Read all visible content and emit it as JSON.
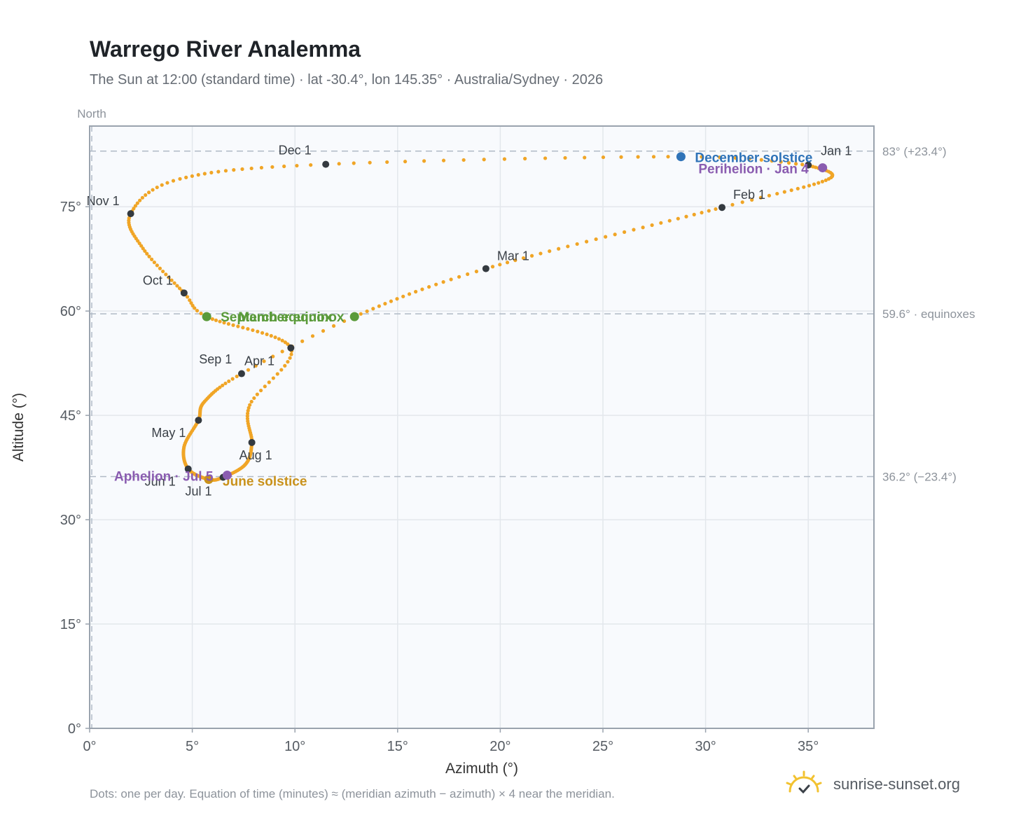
{
  "title": "Warrego River Analemma",
  "subtitle": "The Sun at 12:00 (standard time) · lat -30.4°, lon 145.35° · Australia/Sydney · 2026",
  "footnote": "Dots: one per day. Equation of time (minutes) ≈ (meridian azimuth − azimuth) × 4 near the meridian.",
  "brand": {
    "name": "sunrise-sunset.org",
    "icon": "sun-check-icon"
  },
  "colors": {
    "path": "#f0a526",
    "month": "#343a40",
    "equinox": "#5a9a3a",
    "june_solstice": "#c9921c",
    "december_solstice": "#2f73b8",
    "apsis": "#8a5cb0",
    "grid": "#e3e7ec",
    "plot_bg": "#f8fafd",
    "frame": "#9aa3ae",
    "ref_line": "#b0bac6"
  },
  "chart_data": {
    "type": "scatter",
    "title": "Warrego River Analemma",
    "xlabel": "Azimuth (°)",
    "ylabel": "Altitude (°)",
    "xlim": [
      0,
      38.2
    ],
    "ylim": [
      0,
      86.6
    ],
    "xticks": [
      0,
      5,
      10,
      15,
      20,
      25,
      30,
      35
    ],
    "yticks": [
      0,
      15,
      30,
      45,
      60,
      75
    ],
    "xtick_labels": [
      "0°",
      "5°",
      "10°",
      "15°",
      "20°",
      "25°",
      "30°",
      "35°"
    ],
    "ytick_labels": [
      "0°",
      "15°",
      "30°",
      "45°",
      "60°",
      "75°"
    ],
    "north_label": "North",
    "north_azimuth": 0,
    "grid": true,
    "reference_lines": [
      {
        "altitude": 83.0,
        "label": "83° (+23.4°)"
      },
      {
        "altitude": 59.6,
        "label": "59.6° · equinoxes"
      },
      {
        "altitude": 36.2,
        "label": "36.2° (−23.4°)"
      }
    ],
    "months": [
      {
        "label": "Jan 1",
        "az": 35.0,
        "alt": 81.0
      },
      {
        "label": "Feb 1",
        "az": 30.8,
        "alt": 74.9
      },
      {
        "label": "Mar 1",
        "az": 19.3,
        "alt": 66.1
      },
      {
        "label": "Apr 1",
        "az": 7.4,
        "alt": 51.0
      },
      {
        "label": "May 1",
        "az": 5.3,
        "alt": 44.3
      },
      {
        "label": "Jun 1",
        "az": 4.8,
        "alt": 37.3
      },
      {
        "label": "Jul 1",
        "az": 6.5,
        "alt": 36.1
      },
      {
        "label": "Aug 1",
        "az": 7.9,
        "alt": 41.1
      },
      {
        "label": "Sep 1",
        "az": 9.8,
        "alt": 54.7
      },
      {
        "label": "Oct 1",
        "az": 4.6,
        "alt": 62.6
      },
      {
        "label": "Nov 1",
        "az": 2.0,
        "alt": 74.0
      },
      {
        "label": "Dec 1",
        "az": 11.5,
        "alt": 81.1
      }
    ],
    "events": [
      {
        "label": "March equinox",
        "az": 12.9,
        "alt": 59.2,
        "kind": "equinox"
      },
      {
        "label": "September equinox",
        "az": 5.7,
        "alt": 59.2,
        "kind": "equinox"
      },
      {
        "label": "June solstice",
        "az": 5.8,
        "alt": 35.8,
        "kind": "june_solstice"
      },
      {
        "label": "December solstice",
        "az": 28.8,
        "alt": 82.2,
        "kind": "december_solstice"
      },
      {
        "label": "Perihelion · Jan 4",
        "az": 35.7,
        "alt": 80.6,
        "kind": "apsis"
      },
      {
        "label": "Aphelion · Jul 5",
        "az": 6.7,
        "alt": 36.4,
        "kind": "apsis"
      }
    ],
    "path_knots": [
      {
        "doy": 0,
        "az": 35.0,
        "alt": 81.0
      },
      {
        "doy": 15,
        "az": 36.0,
        "alt": 79.0
      },
      {
        "doy": 31,
        "az": 30.8,
        "alt": 74.9
      },
      {
        "doy": 59,
        "az": 19.3,
        "alt": 66.1
      },
      {
        "doy": 78,
        "az": 12.9,
        "alt": 59.2
      },
      {
        "doy": 90,
        "az": 7.4,
        "alt": 51.0
      },
      {
        "doy": 105,
        "az": 5.6,
        "alt": 47.0
      },
      {
        "doy": 120,
        "az": 5.3,
        "alt": 44.3
      },
      {
        "doy": 135,
        "az": 4.6,
        "alt": 40.5
      },
      {
        "doy": 151,
        "az": 4.8,
        "alt": 37.3
      },
      {
        "doy": 171,
        "az": 5.8,
        "alt": 35.8
      },
      {
        "doy": 181,
        "az": 6.5,
        "alt": 36.1
      },
      {
        "doy": 196,
        "az": 7.6,
        "alt": 38.0
      },
      {
        "doy": 212,
        "az": 7.9,
        "alt": 41.1
      },
      {
        "doy": 228,
        "az": 7.8,
        "alt": 46.5
      },
      {
        "doy": 243,
        "az": 9.8,
        "alt": 54.7
      },
      {
        "doy": 265,
        "az": 5.7,
        "alt": 59.2
      },
      {
        "doy": 273,
        "az": 4.6,
        "alt": 62.6
      },
      {
        "doy": 289,
        "az": 2.6,
        "alt": 69.0
      },
      {
        "doy": 304,
        "az": 2.0,
        "alt": 74.0
      },
      {
        "doy": 318,
        "az": 4.4,
        "alt": 79.0
      },
      {
        "doy": 334,
        "az": 11.5,
        "alt": 81.1
      },
      {
        "doy": 354,
        "az": 28.8,
        "alt": 82.2
      },
      {
        "doy": 365,
        "az": 35.0,
        "alt": 81.0
      }
    ]
  }
}
